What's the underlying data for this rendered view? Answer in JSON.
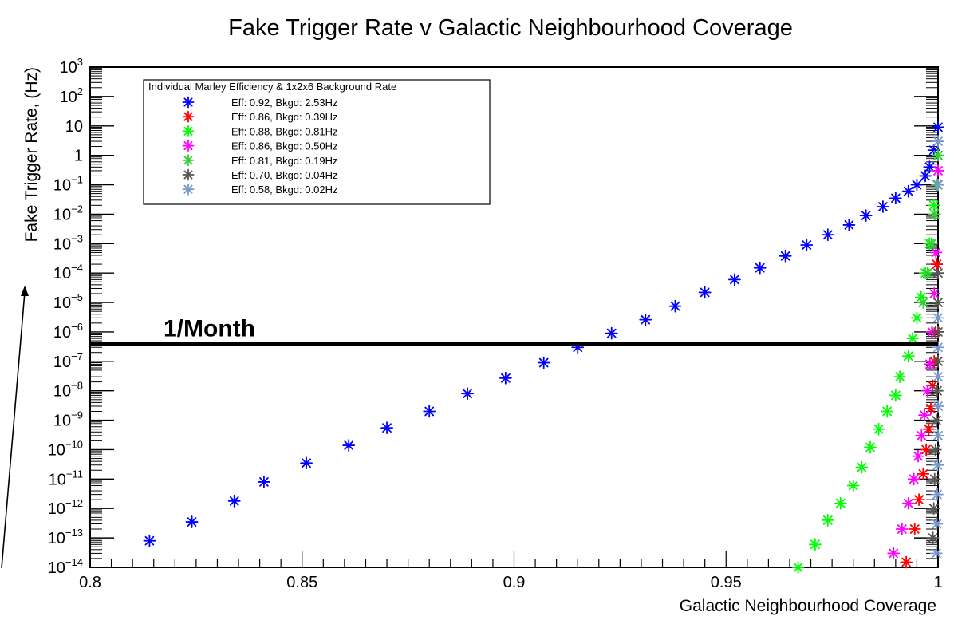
{
  "chart_data": {
    "type": "scatter",
    "title": "Fake Trigger Rate v Galactic Neighbourhood Coverage",
    "xlabel": "Galactic Neighbourhood Coverage",
    "ylabel": "Fake Trigger Rate, (Hz)",
    "xlim": [
      0.8,
      1.0
    ],
    "ylim": [
      1e-14,
      1000
    ],
    "y_scale": "log",
    "grid": false,
    "x_tick_labels": [
      "0.8",
      "0.85",
      "0.9",
      "0.95",
      "1"
    ],
    "y_tick_labels": [
      {
        "base": "10",
        "exp": "3"
      },
      {
        "base": "10",
        "exp": "2"
      },
      {
        "base": "10",
        "exp": ""
      },
      {
        "base": "1",
        "exp": ""
      },
      {
        "base": "10",
        "exp": "−1"
      },
      {
        "base": "10",
        "exp": "−2"
      },
      {
        "base": "10",
        "exp": "−3"
      },
      {
        "base": "10",
        "exp": "−4"
      },
      {
        "base": "10",
        "exp": "−5"
      },
      {
        "base": "10",
        "exp": "−6"
      },
      {
        "base": "10",
        "exp": "−7"
      },
      {
        "base": "10",
        "exp": "−8"
      },
      {
        "base": "10",
        "exp": "−9"
      },
      {
        "base": "10",
        "exp": "−10"
      },
      {
        "base": "10",
        "exp": "−11"
      },
      {
        "base": "10",
        "exp": "−12"
      },
      {
        "base": "10",
        "exp": "−13"
      },
      {
        "base": "10",
        "exp": "−14"
      }
    ],
    "legend": {
      "title": "Individual Marley Efficiency & 1x2x6 Background Rate",
      "placement": "top-left"
    },
    "hline": {
      "y": 3.8e-07,
      "label": "1/Month"
    },
    "series": [
      {
        "name": "Eff: 0.92, Bkgd: 2.53Hz",
        "color": "#0000ff",
        "x": [
          0.814,
          0.824,
          0.834,
          0.841,
          0.851,
          0.861,
          0.87,
          0.88,
          0.889,
          0.898,
          0.907,
          0.915,
          0.923,
          0.931,
          0.938,
          0.945,
          0.952,
          0.958,
          0.964,
          0.969,
          0.974,
          0.979,
          0.983,
          0.987,
          0.99,
          0.993,
          0.995,
          0.997,
          0.998,
          0.999,
          1.0
        ],
        "y": [
          8e-14,
          3.5e-13,
          1.8e-12,
          8e-12,
          3.5e-11,
          1.4e-10,
          5.5e-10,
          2e-09,
          8e-09,
          2.7e-08,
          9e-08,
          3e-07,
          9e-07,
          2.6e-06,
          7.5e-06,
          2.2e-05,
          6e-05,
          0.00015,
          0.00038,
          0.0009,
          0.002,
          0.0043,
          0.009,
          0.018,
          0.035,
          0.06,
          0.1,
          0.2,
          0.4,
          1.5,
          9
        ]
      },
      {
        "name": "Eff: 0.86, Bkgd: 0.39Hz",
        "color": "#ff0000",
        "x": [
          0.9925,
          0.9945,
          0.9955,
          0.9965,
          0.9972,
          0.9978,
          0.9983,
          0.9987,
          0.9991,
          0.9994,
          0.9997,
          1.0
        ],
        "y": [
          1.5e-14,
          2e-13,
          2e-12,
          1.5e-11,
          1e-10,
          5e-10,
          2.5e-09,
          1.5e-08,
          1e-07,
          1e-06,
          0.0002,
          0.1
        ]
      },
      {
        "name": "Eff: 0.88, Bkgd: 0.81Hz",
        "color": "#00ff00",
        "x": [
          0.967,
          0.971,
          0.974,
          0.977,
          0.98,
          0.982,
          0.984,
          0.986,
          0.988,
          0.99,
          0.991,
          0.993,
          0.994,
          0.995,
          0.996,
          0.997,
          0.998,
          0.999,
          1.0
        ],
        "y": [
          1e-14,
          6e-14,
          4e-13,
          1.5e-12,
          6e-12,
          2.5e-11,
          1.2e-10,
          5e-10,
          2e-09,
          7e-09,
          3e-08,
          1.5e-07,
          6e-07,
          3e-06,
          1.5e-05,
          0.0001,
          0.001,
          0.02,
          1
        ]
      },
      {
        "name": "Eff: 0.86, Bkgd: 0.50Hz",
        "color": "#ff00ff",
        "x": [
          0.9895,
          0.9915,
          0.993,
          0.9943,
          0.9953,
          0.9961,
          0.9968,
          0.9975,
          0.9981,
          0.9986,
          0.9991,
          0.9995,
          1.0
        ],
        "y": [
          3e-14,
          2e-13,
          1.5e-12,
          1e-11,
          6e-11,
          3e-10,
          1.5e-09,
          1e-08,
          8e-08,
          1e-06,
          2e-05,
          0.0005,
          0.3
        ]
      },
      {
        "name": "Eff: 0.81, Bkgd: 0.19Hz",
        "color": "#33cc33",
        "x": [
          0.9965,
          0.9975,
          0.9985,
          0.9992,
          0.9998,
          1.0
        ],
        "y": [
          1e-05,
          0.0001,
          0.001,
          0.01,
          0.1,
          1
        ]
      },
      {
        "name": "Eff: 0.70, Bkgd: 0.04Hz",
        "color": "#555555",
        "x": [
          0.9988,
          0.999,
          0.9992,
          0.9994,
          0.9996,
          0.9998,
          1.0,
          1.0,
          1.0,
          1.0
        ],
        "y": [
          1e-13,
          1e-12,
          1e-11,
          1e-10,
          1e-09,
          1e-08,
          1e-07,
          1e-06,
          1e-05,
          0.0001
        ]
      },
      {
        "name": "Eff: 0.58, Bkgd: 0.02Hz",
        "color": "#7799cc",
        "x": [
          0.9996,
          0.9997,
          0.9998,
          0.9999,
          1.0,
          1.0,
          1.0,
          1.0,
          1.0,
          1.0,
          1.0
        ],
        "y": [
          3e-14,
          3e-13,
          3e-12,
          3e-11,
          3e-10,
          3e-09,
          3e-08,
          3e-07,
          3e-06,
          0.1,
          3
        ]
      }
    ]
  }
}
